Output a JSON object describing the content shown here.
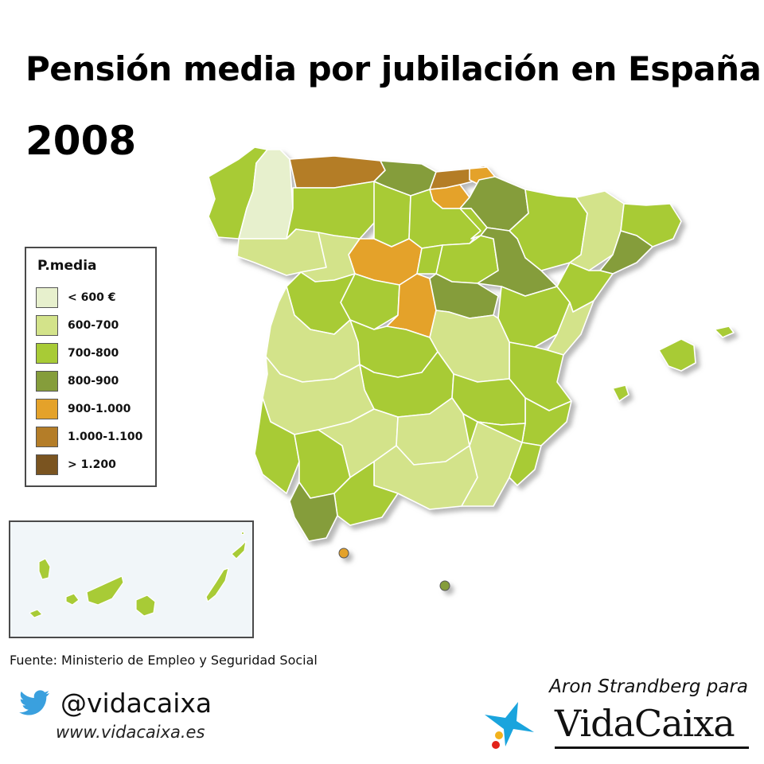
{
  "title": "Pensión media por jubilación en España",
  "year": "2008",
  "legend": {
    "title": "P.media",
    "items": [
      {
        "label": "< 600 €",
        "color": "#e7f0cd"
      },
      {
        "label": "600-700",
        "color": "#d3e38a"
      },
      {
        "label": "700-800",
        "color": "#a8cb36"
      },
      {
        "label": "800-900",
        "color": "#859d3b"
      },
      {
        "label": "900-1.000",
        "color": "#e4a22a"
      },
      {
        "label": "1.000-1.100",
        "color": "#b47d28"
      },
      {
        "label": "> 1.200",
        "color": "#7a5420"
      }
    ]
  },
  "source": "Fuente: Ministerio de Empleo y Seguridad Social",
  "twitter": {
    "handle": "@vidacaixa",
    "color": "#3aa0de"
  },
  "website": "www.vidacaixa.es",
  "author": "Aron Strandberg para",
  "brand": {
    "name": "VidaCaixa",
    "star_color": "#1aa4dd",
    "dot_colors": [
      "#f2b21c",
      "#e2231a"
    ]
  }
}
